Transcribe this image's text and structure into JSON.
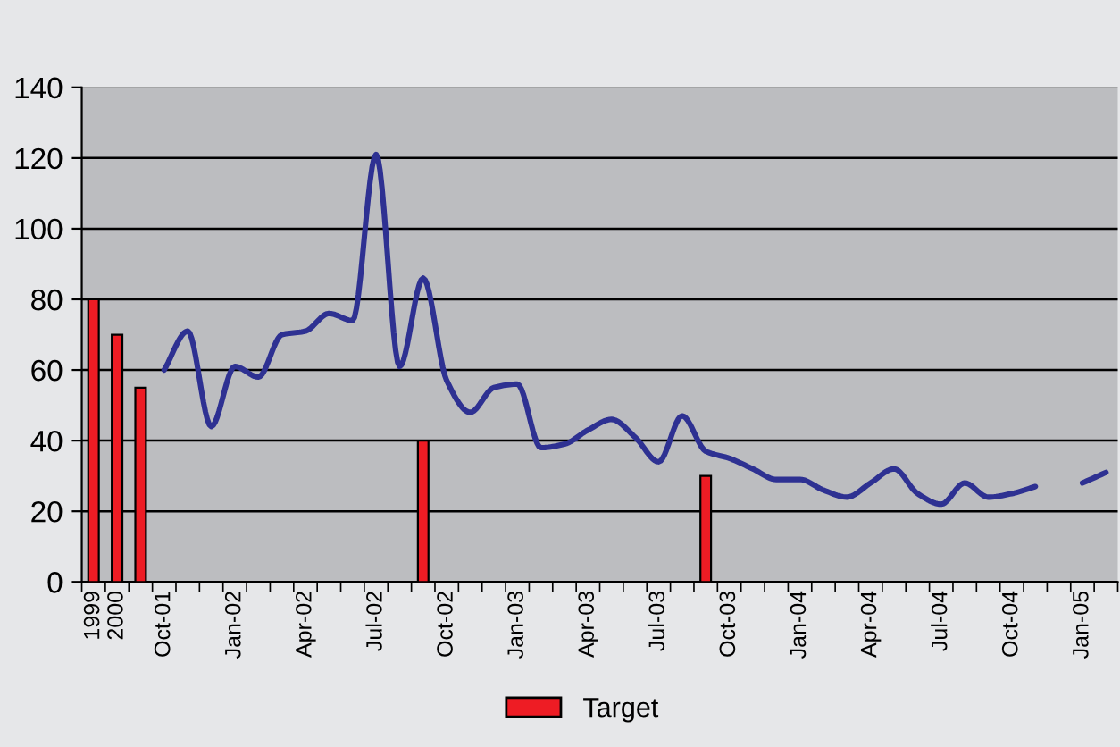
{
  "chart_data": {
    "type": "bar",
    "categories": [
      "1999",
      "2000",
      null,
      "Oct-01",
      null,
      null,
      "Jan-02",
      null,
      null,
      "Apr-02",
      null,
      null,
      "Jul-02",
      null,
      null,
      "Oct-02",
      null,
      null,
      "Jan-03",
      null,
      null,
      "Apr-03",
      null,
      null,
      "Jul-03",
      null,
      null,
      "Oct-03",
      null,
      null,
      "Jan-04",
      null,
      null,
      "Apr-04",
      null,
      null,
      "Jul-04",
      null,
      null,
      "Oct-04",
      null,
      null,
      "Jan-05",
      null
    ],
    "series": [
      {
        "name": "Target",
        "color": "#ee1c24",
        "values": [
          80,
          70,
          55,
          null,
          null,
          null,
          null,
          null,
          null,
          null,
          null,
          null,
          null,
          null,
          40,
          null,
          null,
          null,
          null,
          null,
          null,
          null,
          null,
          null,
          null,
          null,
          30,
          null,
          null,
          null,
          null,
          null,
          null,
          null,
          null,
          null,
          null,
          null,
          null,
          null,
          null,
          null,
          null,
          null
        ]
      },
      {
        "type": "line",
        "color": "#2e3192",
        "values": [
          null,
          null,
          null,
          60,
          71,
          44,
          61,
          58,
          70,
          71,
          76,
          74,
          121,
          61,
          86,
          57,
          48,
          55,
          56,
          38,
          39,
          43,
          46,
          41,
          34,
          47,
          37,
          35,
          32,
          29,
          29,
          26,
          24,
          28,
          32,
          25,
          22,
          28,
          24,
          25,
          27,
          null,
          28,
          31
        ]
      }
    ],
    "ylim": [
      0,
      140
    ],
    "yticks": [
      0,
      20,
      40,
      60,
      80,
      100,
      120,
      140
    ],
    "grid": "y",
    "legend": "bottom"
  }
}
